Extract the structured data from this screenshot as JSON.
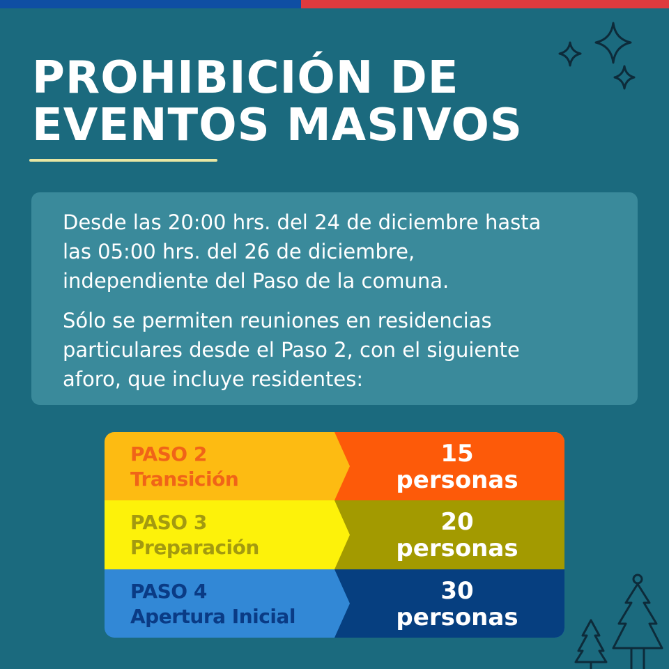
{
  "title": {
    "line1": "PROHIBICIÓN DE",
    "line2": "EVENTOS MASIVOS"
  },
  "info": {
    "paragraph1": [
      "Desde las 20:00 hrs. del 24 de diciembre hasta",
      "las 05:00 hrs. del 26 de diciembre,",
      "independiente del Paso de la comuna."
    ],
    "paragraph2": [
      "Sólo se permiten reuniones en residencias",
      "particulares desde el Paso 2, con el siguiente",
      "aforo, que incluye residentes:"
    ]
  },
  "steps": [
    {
      "name": "PASO 2",
      "phase": "Transición",
      "count": "15",
      "unit": "personas",
      "left_color": "#fdbb12",
      "right_color": "#fd5a09",
      "text_color": "#f06418"
    },
    {
      "name": "PASO 3",
      "phase": "Preparación",
      "count": "20",
      "unit": "personas",
      "left_color": "#fdf20a",
      "right_color": "#a39a00",
      "text_color": "#a39a10"
    },
    {
      "name": "PASO 4",
      "phase": "Apertura Inicial",
      "count": "30",
      "unit": "personas",
      "left_color": "#3288d6",
      "right_color": "#063f80",
      "text_color": "#0a3b85"
    }
  ],
  "colors": {
    "background": "#1b6a7e",
    "info_box": "#3a8a9b",
    "underline": "#e8e7a3",
    "flag_blue": "#0f4ea3",
    "flag_red": "#e03a3e"
  },
  "decorations": [
    "sparkle-stars-icon",
    "christmas-trees-icon"
  ]
}
